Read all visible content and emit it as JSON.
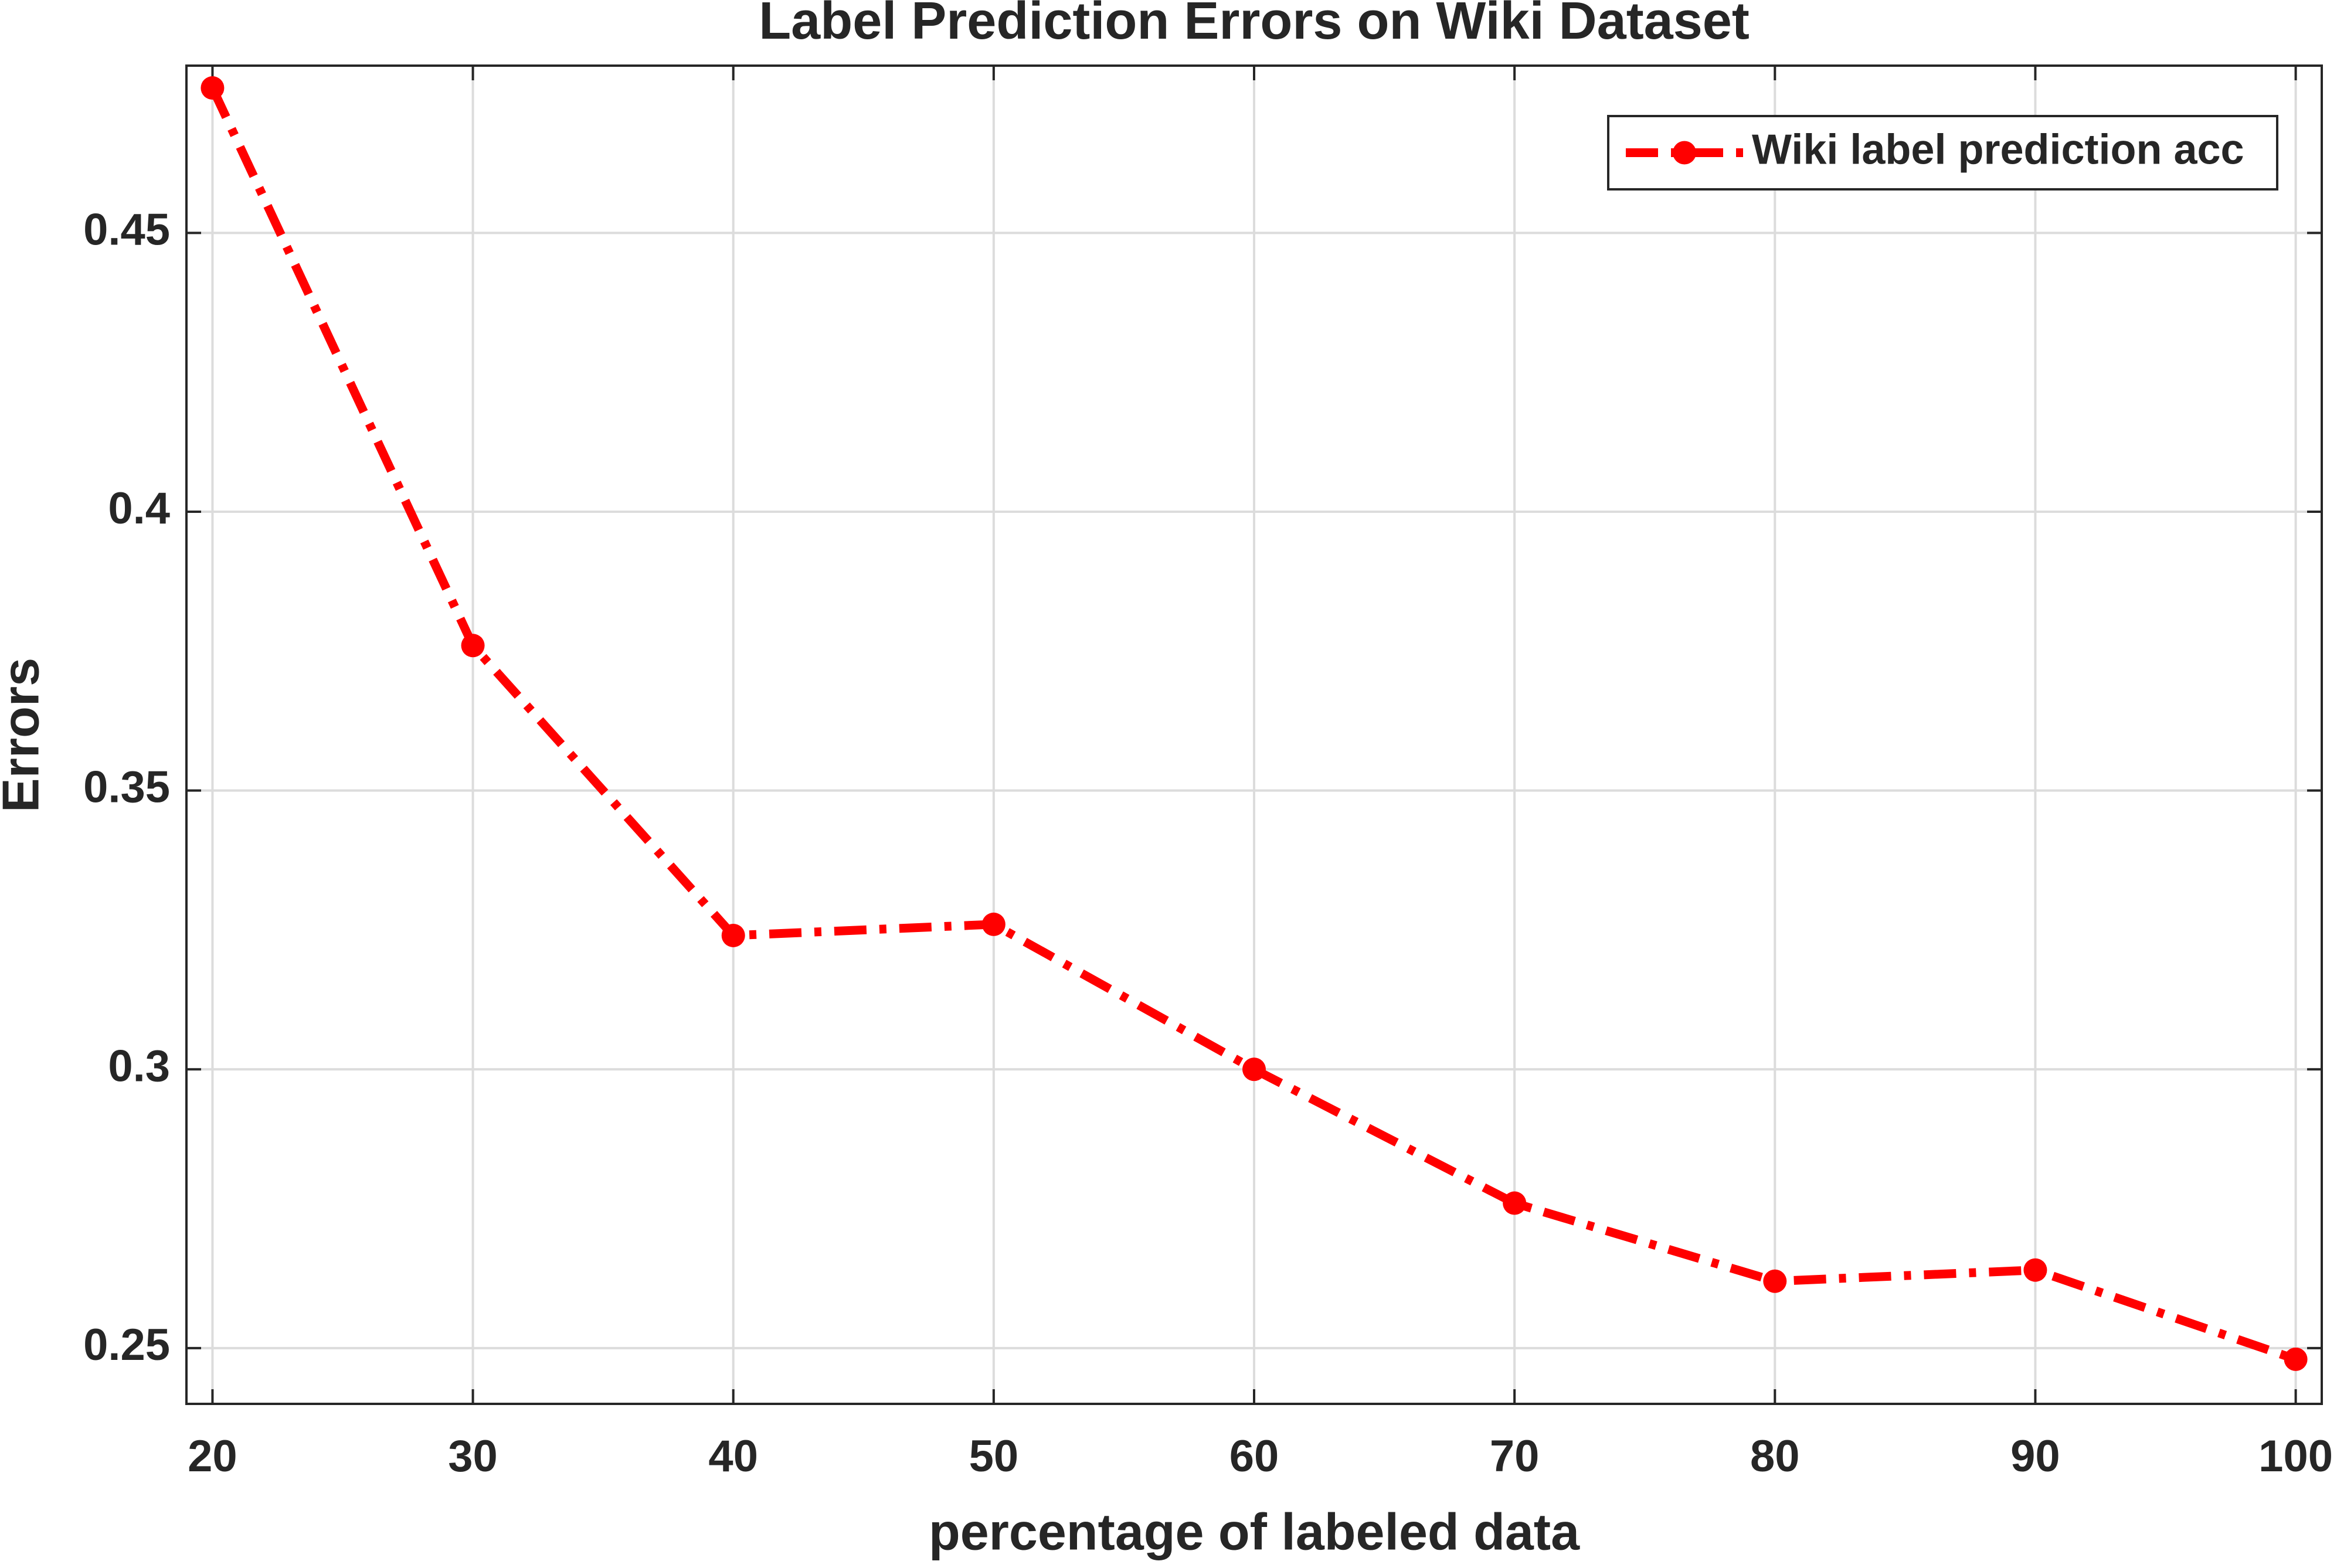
{
  "chart_data": {
    "type": "line",
    "title": "Label Prediction Errors on Wiki Dataset",
    "x_label": "percentage of labeled data",
    "y_label": "Errors",
    "x": [
      20,
      30,
      40,
      50,
      60,
      70,
      80,
      90,
      100
    ],
    "series": [
      {
        "name": "Wiki label prediction acc",
        "color": "#ff0000",
        "values": [
          0.476,
          0.376,
          0.324,
          0.326,
          0.3,
          0.276,
          0.262,
          0.264,
          0.248
        ]
      }
    ],
    "xlim": [
      19,
      101
    ],
    "ylim": [
      0.24,
      0.48
    ],
    "xticks": [
      20,
      30,
      40,
      50,
      60,
      70,
      80,
      90,
      100
    ],
    "yticks": [
      0.25,
      0.3,
      0.35,
      0.4,
      0.45
    ],
    "grid": true,
    "legend": "upper right"
  }
}
